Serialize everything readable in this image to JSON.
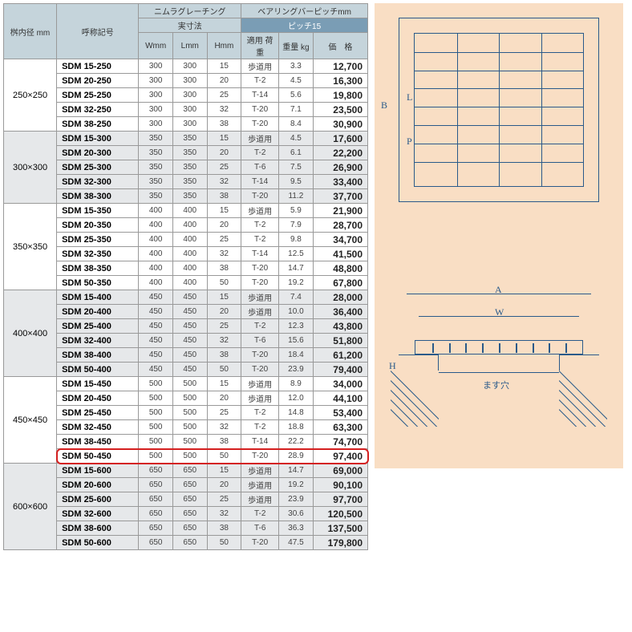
{
  "headers": {
    "col1": "桝内径\nmm",
    "col2": "呼称記号",
    "group1": "ニムラグレーチング",
    "group1_sub": "実寸法",
    "group2": "ベアリングバーピッチmm",
    "group2_sub": "ピッチ15",
    "w": "Wmm",
    "l": "Lmm",
    "h": "Hmm",
    "load": "適用\n荷重",
    "weight": "重量\nkg",
    "price": "価　格"
  },
  "groups": [
    {
      "size": "250×250",
      "shade": false,
      "rows": [
        {
          "label": "SDM 15-250",
          "w": "300",
          "l": "300",
          "h": "15",
          "load": "歩道用",
          "wt": "3.3",
          "price": "12,700"
        },
        {
          "label": "SDM 20-250",
          "w": "300",
          "l": "300",
          "h": "20",
          "load": "T-2",
          "wt": "4.5",
          "price": "16,300"
        },
        {
          "label": "SDM 25-250",
          "w": "300",
          "l": "300",
          "h": "25",
          "load": "T-14",
          "wt": "5.6",
          "price": "19,800"
        },
        {
          "label": "SDM 32-250",
          "w": "300",
          "l": "300",
          "h": "32",
          "load": "T-20",
          "wt": "7.1",
          "price": "23,500"
        },
        {
          "label": "SDM 38-250",
          "w": "300",
          "l": "300",
          "h": "38",
          "load": "T-20",
          "wt": "8.4",
          "price": "30,900"
        }
      ]
    },
    {
      "size": "300×300",
      "shade": true,
      "rows": [
        {
          "label": "SDM 15-300",
          "w": "350",
          "l": "350",
          "h": "15",
          "load": "歩道用",
          "wt": "4.5",
          "price": "17,600"
        },
        {
          "label": "SDM 20-300",
          "w": "350",
          "l": "350",
          "h": "20",
          "load": "T-2",
          "wt": "6.1",
          "price": "22,200"
        },
        {
          "label": "SDM 25-300",
          "w": "350",
          "l": "350",
          "h": "25",
          "load": "T-6",
          "wt": "7.5",
          "price": "26,900"
        },
        {
          "label": "SDM 32-300",
          "w": "350",
          "l": "350",
          "h": "32",
          "load": "T-14",
          "wt": "9.5",
          "price": "33,400"
        },
        {
          "label": "SDM 38-300",
          "w": "350",
          "l": "350",
          "h": "38",
          "load": "T-20",
          "wt": "11.2",
          "price": "37,700"
        }
      ]
    },
    {
      "size": "350×350",
      "shade": false,
      "rows": [
        {
          "label": "SDM 15-350",
          "w": "400",
          "l": "400",
          "h": "15",
          "load": "歩道用",
          "wt": "5.9",
          "price": "21,900"
        },
        {
          "label": "SDM 20-350",
          "w": "400",
          "l": "400",
          "h": "20",
          "load": "T-2",
          "wt": "7.9",
          "price": "28,700"
        },
        {
          "label": "SDM 25-350",
          "w": "400",
          "l": "400",
          "h": "25",
          "load": "T-2",
          "wt": "9.8",
          "price": "34,700"
        },
        {
          "label": "SDM 32-350",
          "w": "400",
          "l": "400",
          "h": "32",
          "load": "T-14",
          "wt": "12.5",
          "price": "41,500"
        },
        {
          "label": "SDM 38-350",
          "w": "400",
          "l": "400",
          "h": "38",
          "load": "T-20",
          "wt": "14.7",
          "price": "48,800"
        },
        {
          "label": "SDM 50-350",
          "w": "400",
          "l": "400",
          "h": "50",
          "load": "T-20",
          "wt": "19.2",
          "price": "67,800"
        }
      ]
    },
    {
      "size": "400×400",
      "shade": true,
      "rows": [
        {
          "label": "SDM 15-400",
          "w": "450",
          "l": "450",
          "h": "15",
          "load": "歩道用",
          "wt": "7.4",
          "price": "28,000"
        },
        {
          "label": "SDM 20-400",
          "w": "450",
          "l": "450",
          "h": "20",
          "load": "歩道用",
          "wt": "10.0",
          "price": "36,400"
        },
        {
          "label": "SDM 25-400",
          "w": "450",
          "l": "450",
          "h": "25",
          "load": "T-2",
          "wt": "12.3",
          "price": "43,800"
        },
        {
          "label": "SDM 32-400",
          "w": "450",
          "l": "450",
          "h": "32",
          "load": "T-6",
          "wt": "15.6",
          "price": "51,800"
        },
        {
          "label": "SDM 38-400",
          "w": "450",
          "l": "450",
          "h": "38",
          "load": "T-20",
          "wt": "18.4",
          "price": "61,200"
        },
        {
          "label": "SDM 50-400",
          "w": "450",
          "l": "450",
          "h": "50",
          "load": "T-20",
          "wt": "23.9",
          "price": "79,400"
        }
      ]
    },
    {
      "size": "450×450",
      "shade": false,
      "rows": [
        {
          "label": "SDM 15-450",
          "w": "500",
          "l": "500",
          "h": "15",
          "load": "歩道用",
          "wt": "8.9",
          "price": "34,000"
        },
        {
          "label": "SDM 20-450",
          "w": "500",
          "l": "500",
          "h": "20",
          "load": "歩道用",
          "wt": "12.0",
          "price": "44,100"
        },
        {
          "label": "SDM 25-450",
          "w": "500",
          "l": "500",
          "h": "25",
          "load": "T-2",
          "wt": "14.8",
          "price": "53,400"
        },
        {
          "label": "SDM 32-450",
          "w": "500",
          "l": "500",
          "h": "32",
          "load": "T-2",
          "wt": "18.8",
          "price": "63,300"
        },
        {
          "label": "SDM 38-450",
          "w": "500",
          "l": "500",
          "h": "38",
          "load": "T-14",
          "wt": "22.2",
          "price": "74,700"
        },
        {
          "label": "SDM 50-450",
          "w": "500",
          "l": "500",
          "h": "50",
          "load": "T-20",
          "wt": "28.9",
          "price": "97,400",
          "highlight": true
        }
      ]
    },
    {
      "size": "600×600",
      "shade": true,
      "rows": [
        {
          "label": "SDM 15-600",
          "w": "650",
          "l": "650",
          "h": "15",
          "load": "歩道用",
          "wt": "14.7",
          "price": "69,000"
        },
        {
          "label": "SDM 20-600",
          "w": "650",
          "l": "650",
          "h": "20",
          "load": "歩道用",
          "wt": "19.2",
          "price": "90,100"
        },
        {
          "label": "SDM 25-600",
          "w": "650",
          "l": "650",
          "h": "25",
          "load": "歩道用",
          "wt": "23.9",
          "price": "97,700"
        },
        {
          "label": "SDM 32-600",
          "w": "650",
          "l": "650",
          "h": "32",
          "load": "T-2",
          "wt": "30.6",
          "price": "120,500"
        },
        {
          "label": "SDM 38-600",
          "w": "650",
          "l": "650",
          "h": "38",
          "load": "T-6",
          "wt": "36.3",
          "price": "137,500"
        },
        {
          "label": "SDM 50-600",
          "w": "650",
          "l": "650",
          "h": "50",
          "load": "T-20",
          "wt": "47.5",
          "price": "179,800"
        }
      ]
    }
  ],
  "diagram": {
    "labels": {
      "B": "B",
      "L": "L",
      "P": "P",
      "A": "A",
      "W": "W",
      "H": "H",
      "hole": "ます穴"
    },
    "colors": {
      "bg": "#f9dec4",
      "line": "#2a5a8a",
      "highlight": "#d42020"
    }
  }
}
